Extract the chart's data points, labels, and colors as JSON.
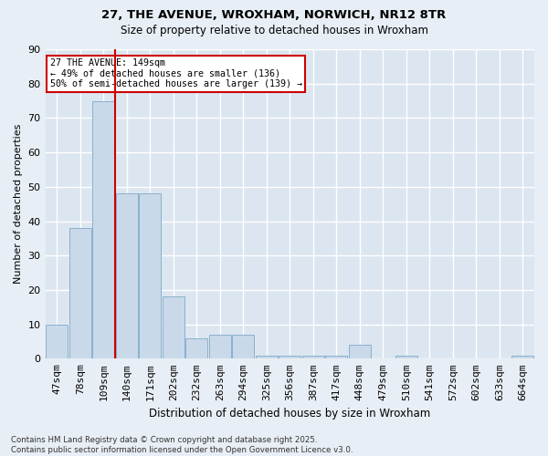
{
  "title_line1": "27, THE AVENUE, WROXHAM, NORWICH, NR12 8TR",
  "title_line2": "Size of property relative to detached houses in Wroxham",
  "xlabel": "Distribution of detached houses by size in Wroxham",
  "ylabel": "Number of detached properties",
  "categories": [
    "47sqm",
    "78sqm",
    "109sqm",
    "140sqm",
    "171sqm",
    "202sqm",
    "232sqm",
    "263sqm",
    "294sqm",
    "325sqm",
    "356sqm",
    "387sqm",
    "417sqm",
    "448sqm",
    "479sqm",
    "510sqm",
    "541sqm",
    "572sqm",
    "602sqm",
    "633sqm",
    "664sqm"
  ],
  "values": [
    10,
    38,
    75,
    48,
    48,
    18,
    6,
    7,
    7,
    1,
    1,
    1,
    1,
    4,
    0,
    1,
    0,
    0,
    0,
    0,
    1
  ],
  "bar_color": "#c9d9ea",
  "bar_edgecolor": "#8ab0cc",
  "red_line_x": 2.5,
  "annotation_text": "27 THE AVENUE: 149sqm\n← 49% of detached houses are smaller (136)\n50% of semi-detached houses are larger (139) →",
  "annotation_box_facecolor": "white",
  "annotation_box_edgecolor": "#cc0000",
  "ylim": [
    0,
    90
  ],
  "yticks": [
    0,
    10,
    20,
    30,
    40,
    50,
    60,
    70,
    80,
    90
  ],
  "background_color": "#e8eef5",
  "plot_bg_color": "#dce6f0",
  "grid_color": "white",
  "footer": "Contains HM Land Registry data © Crown copyright and database right 2025.\nContains public sector information licensed under the Open Government Licence v3.0."
}
